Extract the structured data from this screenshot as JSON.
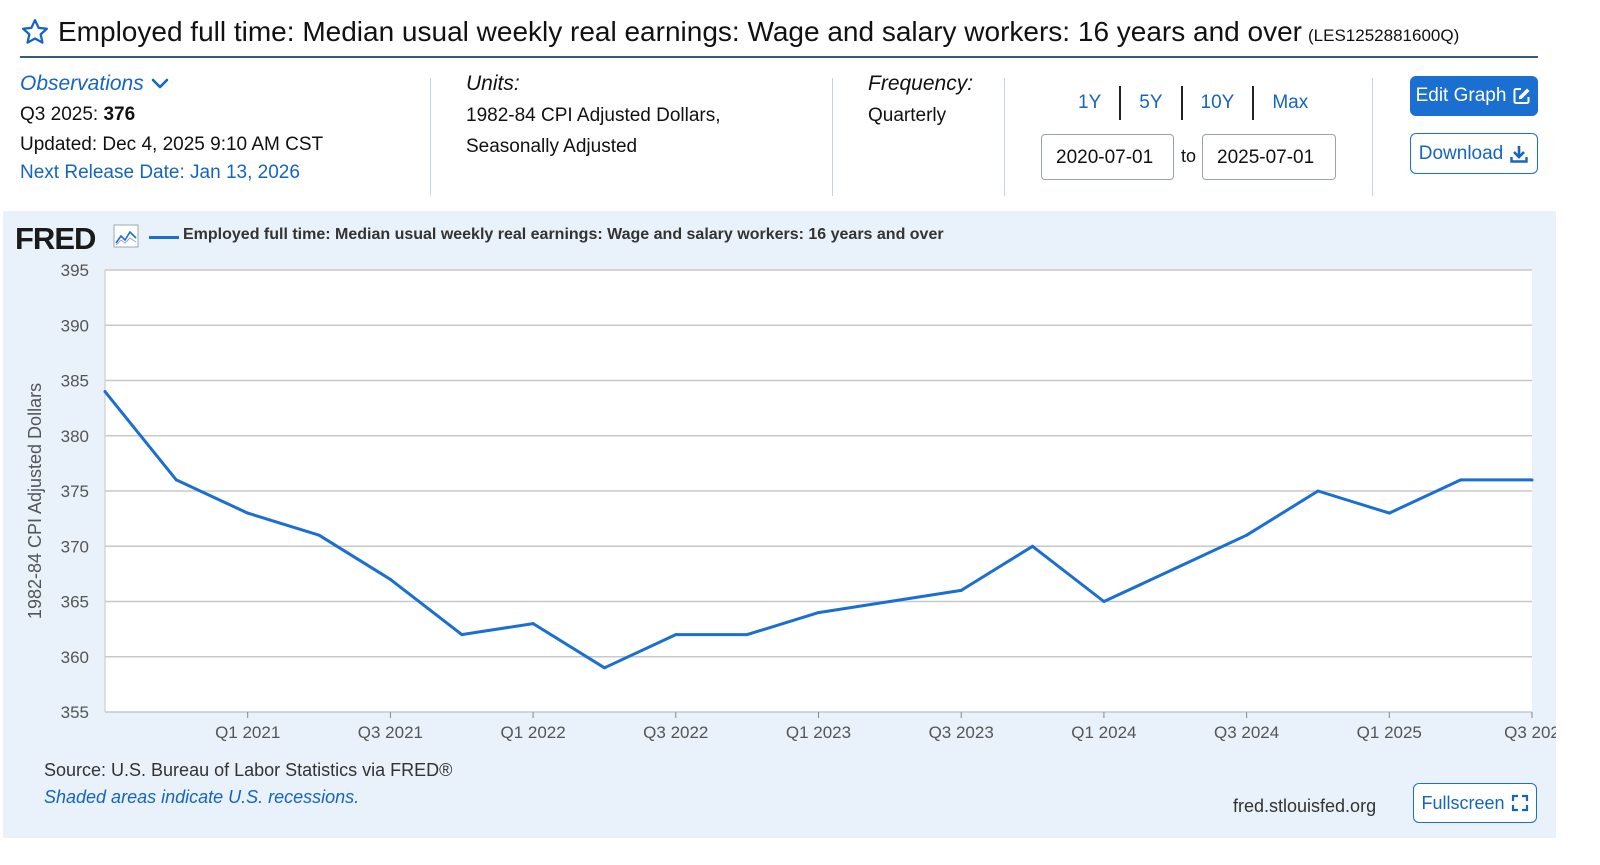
{
  "header": {
    "title": "Employed full time: Median usual weekly real earnings: Wage and salary workers: 16 years and over",
    "series_id": "(LES1252881600Q)"
  },
  "observations": {
    "toggle_label": "Observations",
    "latest_period": "Q3 2025:",
    "latest_value": "376",
    "updated": "Updated: Dec 4, 2025 9:10 AM CST",
    "next_release": "Next Release Date: Jan 13, 2026"
  },
  "units": {
    "label": "Units:",
    "line1": "1982-84 CPI Adjusted Dollars,",
    "line2": "Seasonally Adjusted"
  },
  "frequency": {
    "label": "Frequency:",
    "value": "Quarterly"
  },
  "range": {
    "buttons": [
      "1Y",
      "5Y",
      "10Y",
      "Max"
    ],
    "start": "2020-07-01",
    "to_label": "to",
    "end": "2025-07-01"
  },
  "actions": {
    "edit_graph": "Edit Graph",
    "download": "Download",
    "fullscreen": "Fullscreen"
  },
  "graph": {
    "logo": "FRED",
    "legend": "Employed full time: Median usual weekly real earnings: Wage and salary workers: 16 years and over",
    "source": "Source: U.S. Bureau of Labor Statistics via FRED®",
    "recession_note": "Shaded areas indicate U.S. recessions.",
    "url": "fred.stlouisfed.org"
  },
  "colors": {
    "accent": "#1a6fd0",
    "line": "#1a6fd0",
    "panel_bg": "#e9f1fb",
    "link": "#1565c0"
  },
  "chart_data": {
    "type": "line",
    "title": "",
    "xlabel": "",
    "ylabel": "1982-84 CPI Adjusted Dollars",
    "ylim": [
      355,
      395
    ],
    "yticks": [
      355,
      360,
      365,
      370,
      375,
      380,
      385,
      390,
      395
    ],
    "x": [
      "2020-07-01",
      "2020-10-01",
      "2021-01-01",
      "2021-04-01",
      "2021-07-01",
      "2021-10-01",
      "2022-01-01",
      "2022-04-01",
      "2022-07-01",
      "2022-10-01",
      "2023-01-01",
      "2023-04-01",
      "2023-07-01",
      "2023-10-01",
      "2024-01-01",
      "2024-04-01",
      "2024-07-01",
      "2024-10-01",
      "2025-01-01",
      "2025-04-01",
      "2025-07-01"
    ],
    "xtick_labels": [
      "Q1 2021",
      "Q3 2021",
      "Q1 2022",
      "Q3 2022",
      "Q1 2023",
      "Q3 2023",
      "Q1 2024",
      "Q3 2024",
      "Q1 2025",
      "Q3 202"
    ],
    "xtick_index": [
      2,
      4,
      6,
      8,
      10,
      12,
      14,
      16,
      18,
      20
    ],
    "series": [
      {
        "name": "Employed full time: Median usual weekly real earnings: Wage and salary workers: 16 years and over",
        "values": [
          384,
          376,
          373,
          371,
          367,
          362,
          363,
          359,
          362,
          362,
          364,
          365,
          366,
          370,
          365,
          368,
          371,
          375,
          373,
          376,
          376
        ]
      }
    ],
    "grid": true,
    "legend_position": "top-left"
  }
}
